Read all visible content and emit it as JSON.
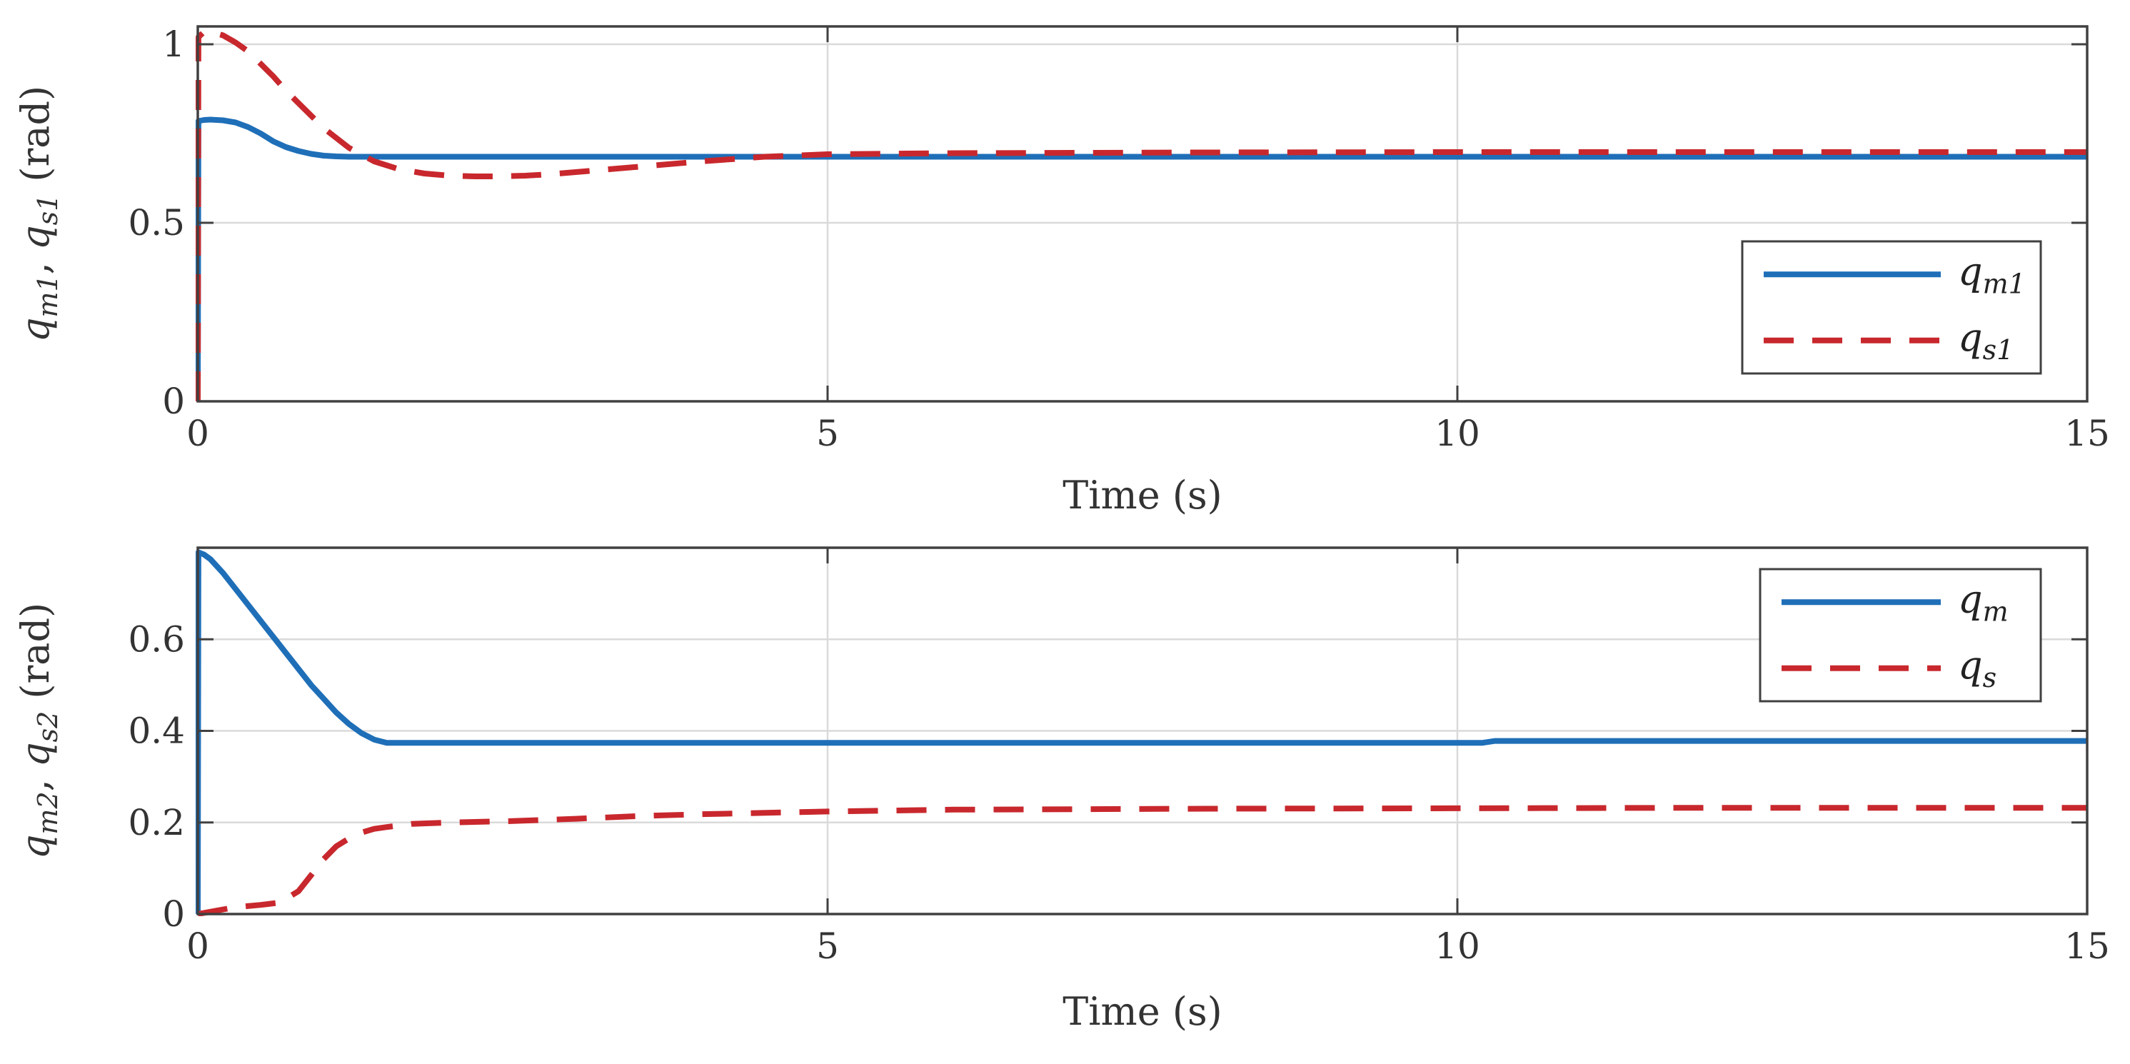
{
  "chart_data": [
    {
      "type": "line",
      "xlabel": "Time (s)",
      "ylabel": {
        "var1_base": "q",
        "var1_sub": "m1",
        "separator": ", ",
        "var2_base": "q",
        "var2_sub": "s1",
        "unit": " (rad)"
      },
      "xlim": [
        0,
        15
      ],
      "ylim": [
        0,
        1.05
      ],
      "xticks": [
        0,
        5,
        10,
        15
      ],
      "xtick_labels": [
        "0",
        "5",
        "10",
        "15"
      ],
      "yticks": [
        0,
        0.5,
        1
      ],
      "ytick_labels": [
        "0",
        "0.5",
        "1"
      ],
      "grid": true,
      "legend_position": "bottom-right",
      "series": [
        {
          "name": "q_m1",
          "legend_base": "q",
          "legend_sub": "m1",
          "style": "solid",
          "color": "#1f6fb8",
          "x": [
            0,
            0.005,
            0.05,
            0.1,
            0.2,
            0.3,
            0.4,
            0.5,
            0.6,
            0.7,
            0.8,
            0.9,
            1.0,
            1.1,
            1.2,
            1.3,
            1.5,
            2,
            3,
            5,
            10,
            15
          ],
          "y": [
            0,
            0.785,
            0.788,
            0.789,
            0.787,
            0.781,
            0.768,
            0.75,
            0.728,
            0.712,
            0.701,
            0.693,
            0.688,
            0.686,
            0.685,
            0.685,
            0.685,
            0.685,
            0.685,
            0.685,
            0.685,
            0.685
          ]
        },
        {
          "name": "q_s1",
          "legend_base": "q",
          "legend_sub": "s1",
          "style": "dashed",
          "color": "#c8282d",
          "x": [
            0,
            0.005,
            0.05,
            0.1,
            0.2,
            0.3,
            0.4,
            0.5,
            0.6,
            0.7,
            0.8,
            0.9,
            1.0,
            1.2,
            1.4,
            1.6,
            1.8,
            2.0,
            2.2,
            2.4,
            2.6,
            2.8,
            3.0,
            3.5,
            4.0,
            4.5,
            5.0,
            6,
            8,
            10,
            12,
            15
          ],
          "y": [
            0,
            1.02,
            1.035,
            1.035,
            1.025,
            1.005,
            0.98,
            0.945,
            0.91,
            0.87,
            0.835,
            0.8,
            0.765,
            0.71,
            0.672,
            0.65,
            0.638,
            0.632,
            0.63,
            0.63,
            0.632,
            0.636,
            0.642,
            0.657,
            0.672,
            0.685,
            0.692,
            0.695,
            0.697,
            0.698,
            0.698,
            0.698
          ]
        }
      ]
    },
    {
      "type": "line",
      "xlabel": "Time (s)",
      "ylabel": {
        "var1_base": "q",
        "var1_sub": "m2",
        "separator": ", ",
        "var2_base": "q",
        "var2_sub": "s2",
        "unit": " (rad)"
      },
      "xlim": [
        0,
        15
      ],
      "ylim": [
        0,
        0.8
      ],
      "xticks": [
        0,
        5,
        10,
        15
      ],
      "xtick_labels": [
        "0",
        "5",
        "10",
        "15"
      ],
      "yticks": [
        0,
        0.2,
        0.4,
        0.6
      ],
      "ytick_labels": [
        "0",
        "0.2",
        "0.4",
        "0.6"
      ],
      "grid": true,
      "legend_position": "top-right",
      "series": [
        {
          "name": "q_m",
          "legend_base": "q",
          "legend_sub": "m",
          "style": "solid",
          "color": "#1f6fb8",
          "x": [
            0,
            0.005,
            0.05,
            0.1,
            0.2,
            0.3,
            0.4,
            0.5,
            0.6,
            0.7,
            0.8,
            0.9,
            1.0,
            1.1,
            1.2,
            1.3,
            1.4,
            1.5,
            2,
            5,
            10,
            10.2,
            10.3,
            15
          ],
          "y": [
            0,
            0.79,
            0.785,
            0.775,
            0.745,
            0.71,
            0.675,
            0.64,
            0.605,
            0.57,
            0.535,
            0.5,
            0.47,
            0.44,
            0.415,
            0.395,
            0.381,
            0.374,
            0.374,
            0.374,
            0.374,
            0.374,
            0.378,
            0.378
          ]
        },
        {
          "name": "q_s",
          "legend_base": "q",
          "legend_sub": "s",
          "style": "dashed",
          "color": "#c8282d",
          "x": [
            0,
            0.1,
            0.3,
            0.5,
            0.65,
            0.8,
            0.9,
            1.0,
            1.1,
            1.2,
            1.3,
            1.4,
            1.5,
            1.7,
            2.0,
            2.5,
            3.0,
            3.5,
            4.0,
            5.0,
            6,
            8,
            10,
            12,
            15
          ],
          "y": [
            0,
            0.005,
            0.015,
            0.02,
            0.025,
            0.05,
            0.085,
            0.12,
            0.148,
            0.165,
            0.178,
            0.186,
            0.19,
            0.197,
            0.2,
            0.203,
            0.208,
            0.214,
            0.218,
            0.224,
            0.228,
            0.23,
            0.231,
            0.232,
            0.232
          ]
        }
      ]
    }
  ]
}
